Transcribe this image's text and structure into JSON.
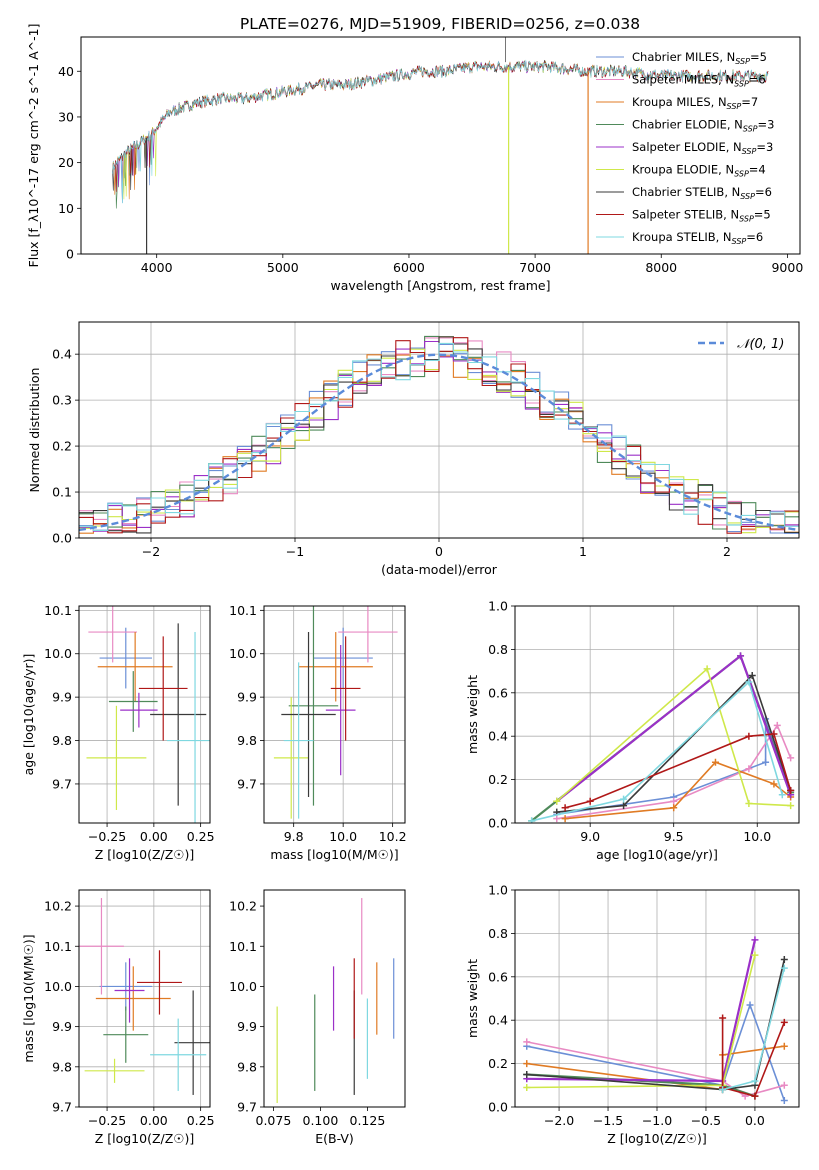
{
  "figure": {
    "title": "PLATE=0276, MJD=51909, FIBERID=0256, z=0.038"
  },
  "models": [
    {
      "name": "Chabrier MILES",
      "n": "5",
      "color": "#6b8fd6"
    },
    {
      "name": "Salpeter MILES",
      "n": "6",
      "color": "#e88ac3"
    },
    {
      "name": "Kroupa MILES",
      "n": "7",
      "color": "#e07b24"
    },
    {
      "name": "Chabrier ELODIE",
      "n": "3",
      "color": "#4f8a5a"
    },
    {
      "name": "Salpeter ELODIE",
      "n": "3",
      "color": "#9b30c8"
    },
    {
      "name": "Kroupa ELODIE",
      "n": "4",
      "color": "#cfe84a"
    },
    {
      "name": "Chabrier STELIB",
      "n": "6",
      "color": "#3a3a3a"
    },
    {
      "name": "Salpeter STELIB",
      "n": "5",
      "color": "#b01818"
    },
    {
      "name": "Kroupa STELIB",
      "n": "6",
      "color": "#7fd8e0"
    }
  ],
  "legend_ssp_label": "SSP",
  "legend_n_prefix": "N",
  "chart_data": [
    {
      "id": "spectrum",
      "type": "line",
      "xlabel": "wavelength [Angstrom, rest frame]",
      "ylabel": "Flux [f_λ10^-17 erg cm^-2 s^-1 A^-1]",
      "xlim": [
        3400,
        9100
      ],
      "ylim": [
        0,
        47.5
      ],
      "xticks": [
        4000,
        5000,
        6000,
        7000,
        8000,
        9000
      ],
      "yticks": [
        0,
        10,
        20,
        30,
        40
      ],
      "continuum": [
        [
          3650,
          19
        ],
        [
          3750,
          22
        ],
        [
          3850,
          24
        ],
        [
          3950,
          26
        ],
        [
          4100,
          31
        ],
        [
          4300,
          33
        ],
        [
          4500,
          34
        ],
        [
          4700,
          34
        ],
        [
          4900,
          35
        ],
        [
          5100,
          36
        ],
        [
          5300,
          37
        ],
        [
          5500,
          37
        ],
        [
          5700,
          38
        ],
        [
          5900,
          39
        ],
        [
          6100,
          40
        ],
        [
          6300,
          40
        ],
        [
          6500,
          41
        ],
        [
          6700,
          41
        ],
        [
          6900,
          41
        ],
        [
          7100,
          41
        ],
        [
          7400,
          40
        ],
        [
          7700,
          40
        ],
        [
          8000,
          39
        ],
        [
          8300,
          39
        ],
        [
          8600,
          39
        ],
        [
          8850,
          39
        ]
      ],
      "dropouts": [
        {
          "x": 3920,
          "model": 6
        },
        {
          "x": 6790,
          "model": 5
        },
        {
          "x": 7420,
          "model": 2
        }
      ],
      "grid": false
    },
    {
      "id": "residuals",
      "type": "histogram",
      "xlabel": "(data-model)/error",
      "ylabel": "Normed distribution",
      "xlim": [
        -2.5,
        2.5
      ],
      "ylim": [
        0,
        0.47
      ],
      "xticks": [
        -2,
        -1,
        0,
        1,
        2
      ],
      "yticks": [
        0.0,
        0.1,
        0.2,
        0.3,
        0.4
      ],
      "bin_width": 0.1,
      "reference": {
        "label": "𝒩(0, 1)",
        "mean": 0,
        "sigma": 1,
        "color": "#5b8bd9"
      },
      "grid": true
    },
    {
      "id": "age_vs_Z",
      "type": "errorbar",
      "xlabel": "Z [log10(Z/Z☉)]",
      "ylabel": "age [log10(age/yr)]",
      "xlim": [
        -0.4,
        0.3
      ],
      "ylim": [
        9.61,
        10.11
      ],
      "xticks": [
        -0.25,
        0.0,
        0.25
      ],
      "yticks": [
        9.7,
        9.8,
        9.9,
        10.0,
        10.1
      ],
      "points": [
        {
          "x": -0.15,
          "y": 9.99,
          "xerr": 0.14,
          "yerr": 0.07
        },
        {
          "x": -0.22,
          "y": 10.05,
          "xerr": 0.13,
          "yerr": 0.07
        },
        {
          "x": -0.1,
          "y": 9.97,
          "xerr": 0.2,
          "yerr": 0.08
        },
        {
          "x": -0.11,
          "y": 9.89,
          "xerr": 0.13,
          "yerr": 0.07
        },
        {
          "x": -0.08,
          "y": 9.87,
          "xerr": 0.1,
          "yerr": 0.04
        },
        {
          "x": -0.2,
          "y": 9.76,
          "xerr": 0.16,
          "yerr": 0.12
        },
        {
          "x": 0.13,
          "y": 9.86,
          "xerr": 0.15,
          "yerr": 0.21
        },
        {
          "x": 0.05,
          "y": 9.92,
          "xerr": 0.13,
          "yerr": 0.12
        },
        {
          "x": 0.22,
          "y": 9.8,
          "xerr": 0.15,
          "yerr": 0.25
        }
      ],
      "grid": true
    },
    {
      "id": "age_vs_mass",
      "type": "errorbar",
      "xlabel": "mass [log10(M/M☉)]",
      "ylabel": "",
      "xlim": [
        9.68,
        10.25
      ],
      "ylim": [
        9.61,
        10.11
      ],
      "xticks": [
        9.8,
        10.0,
        10.2
      ],
      "yticks": [
        9.7,
        9.8,
        9.9,
        10.0,
        10.1
      ],
      "points": [
        {
          "x": 10.0,
          "y": 9.99,
          "xerr": 0.12,
          "yerr": 0.07
        },
        {
          "x": 10.1,
          "y": 10.05,
          "xerr": 0.12,
          "yerr": 0.07
        },
        {
          "x": 9.97,
          "y": 9.97,
          "xerr": 0.15,
          "yerr": 0.08
        },
        {
          "x": 9.88,
          "y": 9.88,
          "xerr": 0.1,
          "yerr": 0.23
        },
        {
          "x": 9.99,
          "y": 9.87,
          "xerr": 0.06,
          "yerr": 0.15
        },
        {
          "x": 9.79,
          "y": 9.76,
          "xerr": 0.07,
          "yerr": 0.14
        },
        {
          "x": 9.86,
          "y": 9.86,
          "xerr": 0.11,
          "yerr": 0.19
        },
        {
          "x": 10.01,
          "y": 9.92,
          "xerr": 0.06,
          "yerr": 0.12
        },
        {
          "x": 9.82,
          "y": 9.8,
          "xerr": 0.06,
          "yerr": 0.18
        }
      ],
      "grid": true
    },
    {
      "id": "massweight_vs_age",
      "type": "line",
      "xlabel": "age [log10(age/yr)]",
      "ylabel": "mass weight",
      "xlim": [
        8.55,
        10.25
      ],
      "ylim": [
        0,
        1.0
      ],
      "xticks": [
        9.0,
        9.5,
        10.0
      ],
      "yticks": [
        0.0,
        0.2,
        0.4,
        0.6,
        0.8,
        1.0
      ],
      "series": [
        [
          [
            8.8,
            0.04
          ],
          [
            9.5,
            0.12
          ],
          [
            10.05,
            0.28
          ],
          [
            10.05,
            0.48
          ],
          [
            10.2,
            0.15
          ]
        ],
        [
          [
            8.8,
            0.02
          ],
          [
            9.5,
            0.1
          ],
          [
            9.95,
            0.25
          ],
          [
            10.12,
            0.45
          ],
          [
            10.2,
            0.3
          ]
        ],
        [
          [
            8.85,
            0.02
          ],
          [
            9.5,
            0.07
          ],
          [
            9.75,
            0.28
          ],
          [
            10.1,
            0.18
          ],
          [
            10.2,
            0.12
          ]
        ],
        [
          [
            8.65,
            0.01
          ],
          [
            9.9,
            0.77
          ],
          [
            10.2,
            0.14
          ]
        ],
        [
          [
            8.8,
            0.1
          ],
          [
            9.9,
            0.77
          ],
          [
            10.2,
            0.13
          ]
        ],
        [
          [
            8.8,
            0.1
          ],
          [
            9.7,
            0.71
          ],
          [
            9.95,
            0.09
          ],
          [
            10.2,
            0.08
          ]
        ],
        [
          [
            8.8,
            0.05
          ],
          [
            9.2,
            0.08
          ],
          [
            9.97,
            0.68
          ],
          [
            10.2,
            0.15
          ]
        ],
        [
          [
            8.85,
            0.07
          ],
          [
            9.0,
            0.1
          ],
          [
            9.95,
            0.4
          ],
          [
            10.1,
            0.41
          ],
          [
            10.2,
            0.15
          ]
        ],
        [
          [
            8.65,
            0.01
          ],
          [
            9.2,
            0.11
          ],
          [
            9.95,
            0.65
          ],
          [
            10.15,
            0.13
          ]
        ]
      ],
      "grid": true
    },
    {
      "id": "mass_vs_Z",
      "type": "errorbar",
      "xlabel": "Z [log10(Z/Z☉)]",
      "ylabel": "mass [log10(M/M☉)]",
      "xlim": [
        -0.4,
        0.3
      ],
      "ylim": [
        9.7,
        10.24
      ],
      "xticks": [
        -0.25,
        0.0,
        0.25
      ],
      "yticks": [
        9.7,
        9.8,
        9.9,
        10.0,
        10.1,
        10.2
      ],
      "points": [
        {
          "x": -0.15,
          "y": 10.0,
          "xerr": 0.14,
          "yerr": 0.06
        },
        {
          "x": -0.28,
          "y": 10.1,
          "xerr": 0.12,
          "yerr": 0.12
        },
        {
          "x": -0.11,
          "y": 9.97,
          "xerr": 0.2,
          "yerr": 0.08
        },
        {
          "x": -0.15,
          "y": 9.88,
          "xerr": 0.12,
          "yerr": 0.07
        },
        {
          "x": -0.13,
          "y": 9.99,
          "xerr": 0.08,
          "yerr": 0.08
        },
        {
          "x": -0.21,
          "y": 9.79,
          "xerr": 0.16,
          "yerr": 0.03
        },
        {
          "x": 0.21,
          "y": 9.86,
          "xerr": 0.1,
          "yerr": 0.13
        },
        {
          "x": 0.03,
          "y": 10.01,
          "xerr": 0.12,
          "yerr": 0.08
        },
        {
          "x": 0.13,
          "y": 9.83,
          "xerr": 0.15,
          "yerr": 0.09
        }
      ],
      "grid": true
    },
    {
      "id": "mass_vs_ebv",
      "type": "errorbar",
      "xlabel": "E(B-V)",
      "ylabel": "",
      "xlim": [
        0.07,
        0.145
      ],
      "ylim": [
        9.7,
        10.24
      ],
      "xticks": [
        0.075,
        0.1,
        0.125
      ],
      "yticks": [
        9.7,
        9.8,
        9.9,
        10.0,
        10.1,
        10.2
      ],
      "points": [
        {
          "x": 0.139,
          "y": 9.97,
          "xerr": 0,
          "yerr": 0.1
        },
        {
          "x": 0.122,
          "y": 10.1,
          "xerr": 0,
          "yerr": 0.12
        },
        {
          "x": 0.13,
          "y": 9.97,
          "xerr": 0,
          "yerr": 0.09
        },
        {
          "x": 0.097,
          "y": 9.86,
          "xerr": 0,
          "yerr": 0.12
        },
        {
          "x": 0.107,
          "y": 9.97,
          "xerr": 0,
          "yerr": 0.08
        },
        {
          "x": 0.077,
          "y": 9.83,
          "xerr": 0,
          "yerr": 0.12
        },
        {
          "x": 0.118,
          "y": 9.86,
          "xerr": 0,
          "yerr": 0.13
        },
        {
          "x": 0.118,
          "y": 9.97,
          "xerr": 0,
          "yerr": 0.1
        },
        {
          "x": 0.125,
          "y": 9.87,
          "xerr": 0,
          "yerr": 0.1
        }
      ],
      "grid": false
    },
    {
      "id": "massweight_vs_Z",
      "type": "line",
      "xlabel": "Z [log10(Z/Z☉)]",
      "ylabel": "mass weight",
      "xlim": [
        -2.45,
        0.45
      ],
      "ylim": [
        0,
        1.0
      ],
      "xticks": [
        -2.0,
        -1.5,
        -1.0,
        -0.5,
        0.0
      ],
      "yticks": [
        0.0,
        0.2,
        0.4,
        0.6,
        0.8,
        1.0
      ],
      "series": [
        [
          [
            -2.33,
            0.28
          ],
          [
            -0.33,
            0.1
          ],
          [
            -0.05,
            0.47
          ],
          [
            0.3,
            0.03
          ]
        ],
        [
          [
            -2.33,
            0.3
          ],
          [
            -0.33,
            0.12
          ],
          [
            -0.1,
            0.05
          ],
          [
            0.3,
            0.1
          ]
        ],
        [
          [
            -2.33,
            0.2
          ],
          [
            -0.33,
            0.08
          ],
          [
            -0.33,
            0.24
          ],
          [
            0.3,
            0.28
          ]
        ],
        [
          [
            -2.33,
            0.15
          ],
          [
            -0.33,
            0.1
          ],
          [
            0.0,
            0.05
          ]
        ],
        [
          [
            -2.33,
            0.13
          ],
          [
            -0.33,
            0.12
          ],
          [
            0.0,
            0.77
          ]
        ],
        [
          [
            -2.33,
            0.09
          ],
          [
            -0.33,
            0.1
          ],
          [
            0.0,
            0.7
          ]
        ],
        [
          [
            -2.33,
            0.15
          ],
          [
            -0.33,
            0.08
          ],
          [
            0.0,
            0.1
          ],
          [
            0.3,
            0.68
          ]
        ],
        [
          [
            -0.33,
            0.41
          ],
          [
            -0.33,
            0.09
          ],
          [
            0.0,
            0.05
          ],
          [
            0.3,
            0.39
          ]
        ],
        [
          [
            -0.33,
            0.08
          ],
          [
            0.0,
            0.12
          ],
          [
            0.3,
            0.64
          ]
        ]
      ],
      "grid": true
    }
  ]
}
